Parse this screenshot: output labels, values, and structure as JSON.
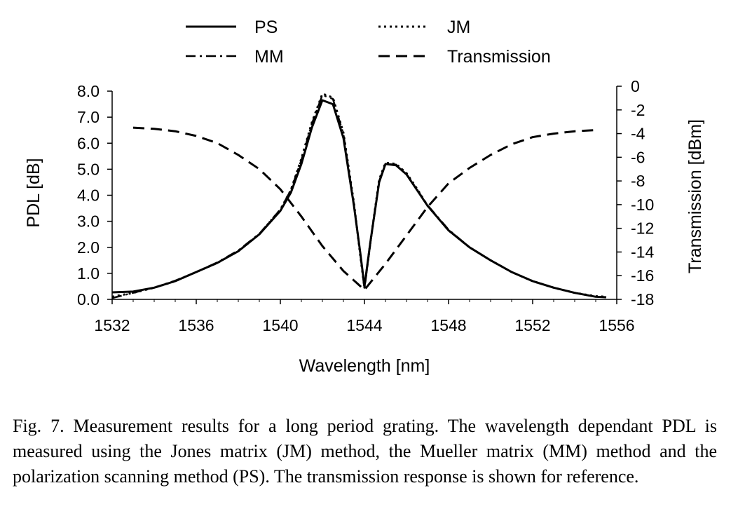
{
  "chart_data": {
    "type": "line",
    "title": "",
    "xlabel": "Wavelength [nm]",
    "ylabel": "PDL [dB]",
    "y2label": "Transmission [dBm]",
    "xlim": [
      1532,
      1556
    ],
    "ylim": [
      0,
      8
    ],
    "y2lim": [
      -18,
      0
    ],
    "xticks": [
      "1532",
      "1536",
      "1540",
      "1544",
      "1548",
      "1552",
      "1556"
    ],
    "yticks": [
      "0.0",
      "1.0",
      "2.0",
      "3.0",
      "4.0",
      "5.0",
      "6.0",
      "7.0",
      "8.0"
    ],
    "y2ticks": [
      "0",
      "-2",
      "-4",
      "-6",
      "-8",
      "-10",
      "-12",
      "-14",
      "-16",
      "-18"
    ],
    "grid": false,
    "legend_position": "top",
    "series": [
      {
        "name": "PS",
        "axis": "left",
        "style": "solid",
        "x": [
          1532,
          1533,
          1534,
          1535,
          1536,
          1537,
          1538,
          1539,
          1540,
          1540.5,
          1541,
          1541.5,
          1542,
          1542.5,
          1543,
          1543.5,
          1543.8,
          1544,
          1544.3,
          1544.7,
          1545,
          1545.5,
          1546,
          1546.5,
          1547,
          1548,
          1549,
          1550,
          1551,
          1552,
          1553,
          1554,
          1555,
          1555.5
        ],
        "y": [
          0.27,
          0.3,
          0.45,
          0.7,
          1.05,
          1.4,
          1.85,
          2.5,
          3.4,
          4.1,
          5.2,
          6.6,
          7.65,
          7.5,
          6.2,
          3.6,
          1.8,
          0.5,
          2.3,
          4.5,
          5.2,
          5.15,
          4.8,
          4.2,
          3.6,
          2.65,
          2.0,
          1.5,
          1.05,
          0.7,
          0.45,
          0.25,
          0.1,
          0.08
        ]
      },
      {
        "name": "JM",
        "axis": "left",
        "style": "dotted",
        "x": [
          1532,
          1533,
          1534,
          1535,
          1536,
          1537,
          1538,
          1539,
          1540,
          1540.5,
          1541,
          1541.5,
          1542,
          1542.5,
          1543,
          1543.5,
          1543.8,
          1544,
          1544.3,
          1544.7,
          1545,
          1545.5,
          1546,
          1546.5,
          1547,
          1548,
          1549,
          1550,
          1551,
          1552,
          1553,
          1554,
          1555,
          1555.5
        ],
        "y": [
          0.1,
          0.25,
          0.45,
          0.7,
          1.05,
          1.4,
          1.85,
          2.5,
          3.45,
          4.2,
          5.4,
          6.8,
          7.9,
          7.75,
          6.4,
          3.7,
          1.7,
          0.45,
          2.3,
          4.6,
          5.25,
          5.2,
          4.85,
          4.25,
          3.6,
          2.65,
          2.0,
          1.5,
          1.05,
          0.7,
          0.45,
          0.25,
          0.12,
          0.1
        ]
      },
      {
        "name": "MM",
        "axis": "left",
        "style": "dash-dot",
        "x": [
          1532,
          1533,
          1534,
          1535,
          1536,
          1537,
          1538,
          1539,
          1540,
          1540.5,
          1541,
          1541.5,
          1542,
          1542.5,
          1543,
          1543.5,
          1543.8,
          1544,
          1544.3,
          1544.7,
          1545,
          1545.5,
          1546,
          1546.5,
          1547,
          1548,
          1549,
          1550,
          1551,
          1552,
          1553,
          1554,
          1555,
          1555.5
        ],
        "y": [
          0.05,
          0.25,
          0.45,
          0.72,
          1.05,
          1.42,
          1.88,
          2.52,
          3.45,
          4.2,
          5.35,
          6.75,
          7.85,
          7.7,
          6.35,
          3.65,
          1.75,
          0.4,
          2.25,
          4.55,
          5.2,
          5.18,
          4.82,
          4.22,
          3.62,
          2.68,
          2.0,
          1.5,
          1.05,
          0.7,
          0.45,
          0.25,
          0.1,
          0.08
        ]
      },
      {
        "name": "Transmission",
        "axis": "right",
        "style": "dashed",
        "x": [
          1533,
          1534,
          1535,
          1536,
          1537,
          1538,
          1539,
          1540,
          1541,
          1542,
          1543,
          1544,
          1545,
          1546,
          1547,
          1548,
          1549,
          1550,
          1551,
          1552,
          1553,
          1554,
          1555
        ],
        "y": [
          -3.5,
          -3.6,
          -3.8,
          -4.2,
          -4.8,
          -5.8,
          -7.0,
          -8.7,
          -11.0,
          -13.5,
          -15.6,
          -17.2,
          -15.0,
          -12.6,
          -10.2,
          -8.2,
          -6.9,
          -5.8,
          -4.9,
          -4.3,
          -4.0,
          -3.8,
          -3.7
        ]
      }
    ]
  },
  "caption": "Fig. 7.  Measurement results for a long period grating. The wavelength dependant PDL is measured using the Jones matrix (JM) method, the Mueller matrix (MM) method and the polarization scanning method (PS). The transmission response is shown for reference."
}
